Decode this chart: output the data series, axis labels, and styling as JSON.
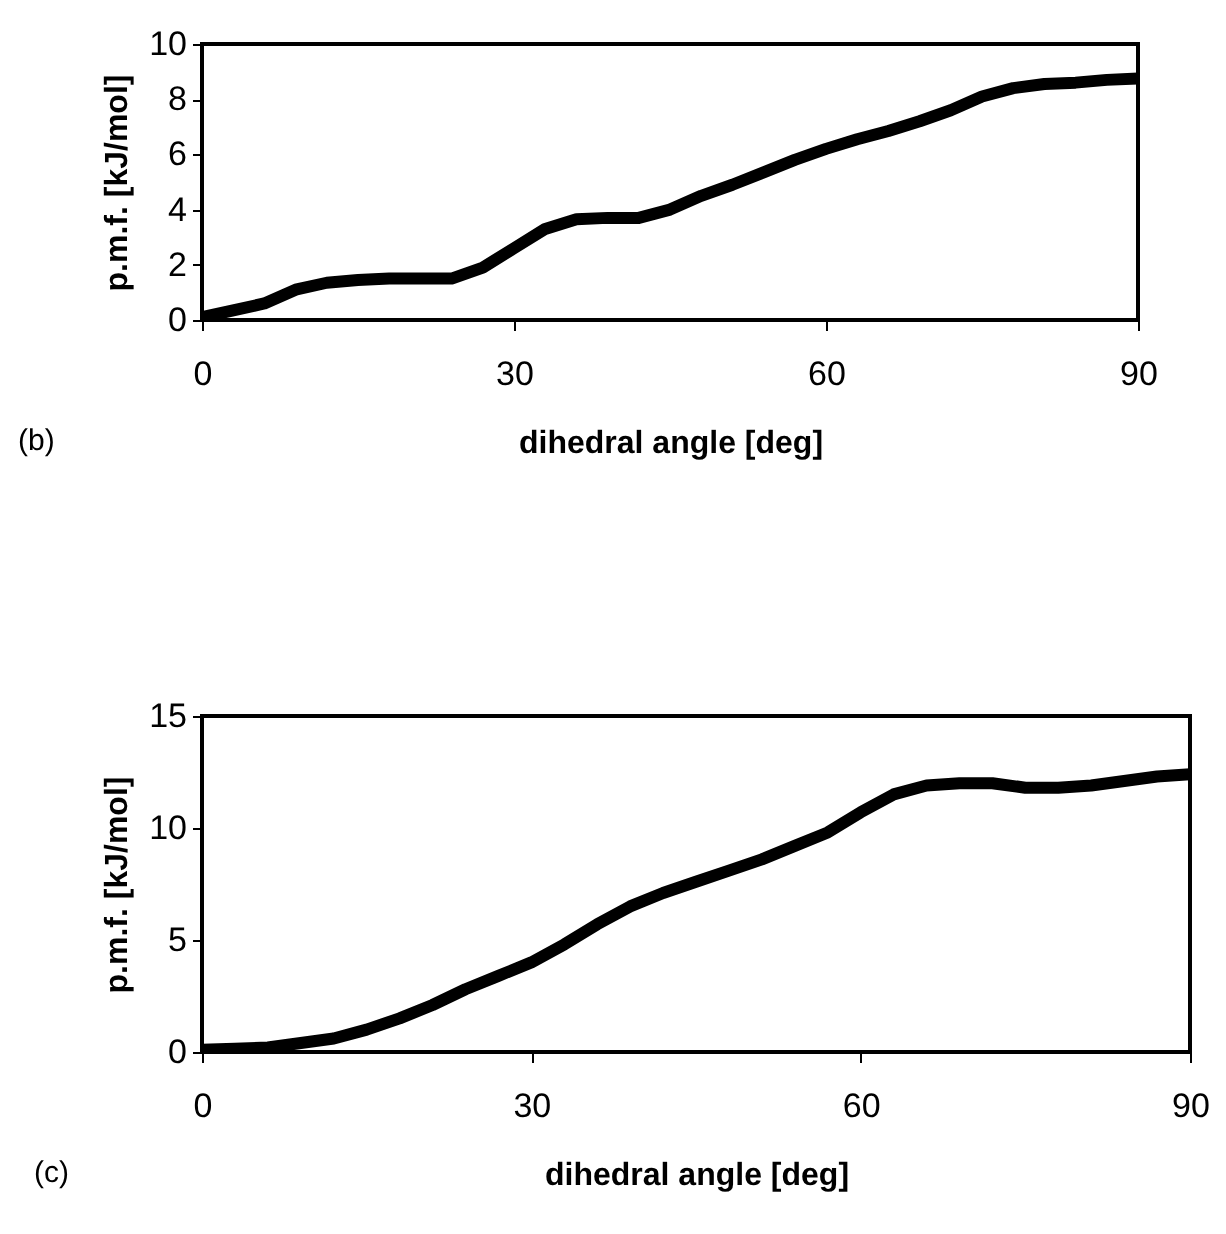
{
  "chart_data": [
    {
      "type": "line",
      "xlabel": "dihedral angle [deg]",
      "ylabel": "p.m.f. [kJ/mol]",
      "annotations": [
        "(b)"
      ],
      "x": [
        0,
        3,
        6,
        9,
        12,
        15,
        18,
        21,
        24,
        27,
        30,
        33,
        36,
        39,
        42,
        45,
        48,
        51,
        54,
        57,
        60,
        63,
        66,
        69,
        72,
        75,
        78,
        81,
        84,
        87,
        90
      ],
      "series": [
        {
          "color": "#000000",
          "values": [
            0.1,
            0.35,
            0.6,
            1.1,
            1.35,
            1.45,
            1.5,
            1.5,
            1.5,
            1.9,
            2.6,
            3.3,
            3.65,
            3.7,
            3.7,
            4.0,
            4.5,
            4.9,
            5.35,
            5.8,
            6.2,
            6.55,
            6.85,
            7.2,
            7.6,
            8.1,
            8.4,
            8.55,
            8.6,
            8.7,
            8.75
          ]
        }
      ],
      "xlim": [
        0,
        90
      ],
      "xticks": [
        0,
        30,
        60,
        90
      ],
      "ylim": [
        0,
        10
      ],
      "yticks": [
        0,
        2,
        4,
        6,
        8,
        10
      ],
      "grid": false,
      "line_style": "solid",
      "marker": "none"
    },
    {
      "type": "line",
      "xlabel": "dihedral angle [deg]",
      "ylabel": "p.m.f. [kJ/mol]",
      "annotations": [
        "(c)"
      ],
      "x": [
        0,
        3,
        6,
        9,
        12,
        15,
        18,
        21,
        24,
        27,
        30,
        33,
        36,
        39,
        42,
        45,
        48,
        51,
        54,
        57,
        60,
        63,
        66,
        69,
        72,
        75,
        78,
        81,
        84,
        87,
        90
      ],
      "series": [
        {
          "color": "#000000",
          "values": [
            0.1,
            0.15,
            0.2,
            0.4,
            0.6,
            1.0,
            1.5,
            2.1,
            2.8,
            3.4,
            4.0,
            4.8,
            5.7,
            6.5,
            7.1,
            7.6,
            8.1,
            8.6,
            9.2,
            9.8,
            10.7,
            11.5,
            11.9,
            12.0,
            12.0,
            11.8,
            11.8,
            11.9,
            12.1,
            12.3,
            12.4
          ]
        }
      ],
      "xlim": [
        0,
        90
      ],
      "xticks": [
        0,
        30,
        60,
        90
      ],
      "ylim": [
        0,
        15
      ],
      "yticks": [
        0,
        5,
        10,
        15
      ],
      "grid": false,
      "line_style": "solid",
      "marker": "none"
    }
  ]
}
